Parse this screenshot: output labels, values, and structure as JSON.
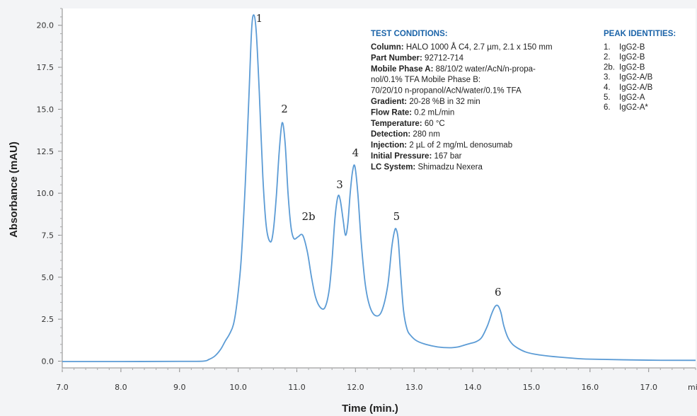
{
  "chart_data": {
    "type": "line",
    "xlabel": "Time (min.)",
    "ylabel": "Absorbance (mAU)",
    "x_unit_label": "min",
    "xlim": [
      7.0,
      17.8
    ],
    "ylim": [
      -0.4,
      21.0
    ],
    "x_ticks": [
      7.0,
      8.0,
      9.0,
      10.0,
      11.0,
      12.0,
      13.0,
      14.0,
      15.0,
      16.0,
      17.0
    ],
    "x_tick_labels": [
      "7.0",
      "8.0",
      "9.0",
      "10.0",
      "11.0",
      "12.0",
      "13.0",
      "14.0",
      "15.0",
      "16.0",
      "17.0"
    ],
    "y_ticks": [
      0.0,
      2.5,
      5.0,
      7.5,
      10.0,
      12.5,
      15.0,
      17.5,
      20.0
    ],
    "y_tick_labels": [
      "0.0",
      "2.5",
      "5.0",
      "7.5",
      "10.0",
      "12.5",
      "15.0",
      "17.5",
      "20.0"
    ],
    "grid": false,
    "line_color": "#5b9bd5",
    "series": [
      {
        "x": [
          7.0,
          8.0,
          9.0,
          9.4,
          9.5,
          9.6,
          9.7,
          9.78,
          9.85,
          9.92,
          9.98,
          10.05,
          10.12,
          10.18,
          10.23,
          10.27,
          10.31,
          10.36,
          10.42,
          10.48,
          10.55,
          10.6,
          10.65,
          10.7,
          10.75,
          10.8,
          10.85,
          10.9,
          10.95,
          11.02,
          11.1,
          11.18,
          11.25,
          11.32,
          11.4,
          11.48,
          11.55,
          11.6,
          11.65,
          11.7,
          11.74,
          11.79,
          11.83,
          11.87,
          11.91,
          11.95,
          11.99,
          12.04,
          12.1,
          12.17,
          12.25,
          12.35,
          12.45,
          12.55,
          12.62,
          12.67,
          12.7,
          12.73,
          12.77,
          12.82,
          12.88,
          12.95,
          13.05,
          13.2,
          13.4,
          13.6,
          13.75,
          13.85,
          13.95,
          14.05,
          14.15,
          14.25,
          14.32,
          14.38,
          14.43,
          14.48,
          14.53,
          14.6,
          14.68,
          14.78,
          14.9,
          15.05,
          15.3,
          15.7,
          16.0,
          17.0,
          17.8
        ],
        "y": [
          -0.02,
          -0.02,
          -0.01,
          0.0,
          0.1,
          0.3,
          0.7,
          1.2,
          1.6,
          2.2,
          3.5,
          6.0,
          10.5,
          15.5,
          19.8,
          20.6,
          19.5,
          16.0,
          11.0,
          8.0,
          7.1,
          7.8,
          9.8,
          12.5,
          14.2,
          13.0,
          10.0,
          8.0,
          7.3,
          7.4,
          7.5,
          6.5,
          5.0,
          3.8,
          3.2,
          3.2,
          4.2,
          6.0,
          8.5,
          9.8,
          9.6,
          8.4,
          7.5,
          8.2,
          10.0,
          11.3,
          11.6,
          10.0,
          7.0,
          4.5,
          3.2,
          2.7,
          3.0,
          4.5,
          6.8,
          7.8,
          7.8,
          7.2,
          5.2,
          3.0,
          1.9,
          1.5,
          1.2,
          1.0,
          0.85,
          0.8,
          0.85,
          0.95,
          1.05,
          1.15,
          1.4,
          2.1,
          2.8,
          3.25,
          3.3,
          2.9,
          2.1,
          1.4,
          1.0,
          0.75,
          0.55,
          0.42,
          0.3,
          0.18,
          0.12,
          0.06,
          0.05
        ]
      }
    ],
    "annotations": [
      {
        "text": "1",
        "x": 10.36,
        "y": 20.2
      },
      {
        "text": "2",
        "x": 10.79,
        "y": 14.8
      },
      {
        "text": "2b",
        "x": 11.2,
        "y": 8.4
      },
      {
        "text": "3",
        "x": 11.73,
        "y": 10.3
      },
      {
        "text": "4",
        "x": 12.0,
        "y": 12.2
      },
      {
        "text": "5",
        "x": 12.7,
        "y": 8.4
      },
      {
        "text": "6",
        "x": 14.43,
        "y": 3.9
      }
    ]
  },
  "test_conditions": {
    "heading": "TEST CONDITIONS:",
    "lines": [
      {
        "label": "Column:",
        "text": " HALO 1000 Å C4, 2.7 µm, 2.1 x 150 mm"
      },
      {
        "label": "Part Number:",
        "text": "  92712-714"
      },
      {
        "label": "Mobile Phase A:",
        "text": " 88/10/2 water/AcN/n-propa-"
      },
      {
        "label": "",
        "text": "nol/0.1% TFA Mobile Phase B:"
      },
      {
        "label": "",
        "text": "70/20/10 n-propanol/AcN/water/0.1% TFA"
      },
      {
        "label": "Gradient:",
        "text": " 20-28 %B in 32 min"
      },
      {
        "label": "Flow Rate:",
        "text": " 0.2 mL/min"
      },
      {
        "label": "Temperature:",
        "text": " 60 °C"
      },
      {
        "label": "Detection:",
        "text": " 280 nm"
      },
      {
        "label": "Injection:",
        "text": " 2 µL of 2 mg/mL denosumab"
      },
      {
        "label": "Initial Pressure:",
        "text": " 167 bar"
      },
      {
        "label": "LC System:",
        "text": " Shimadzu Nexera"
      }
    ]
  },
  "peak_identities": {
    "heading": "PEAK IDENTITIES:",
    "items": [
      {
        "num": "1.",
        "name": "IgG2-B"
      },
      {
        "num": "2.",
        "name": "IgG2-B"
      },
      {
        "num": "2b.",
        "name": "IgG2-B"
      },
      {
        "num": "3.",
        "name": "IgG2-A/B"
      },
      {
        "num": "4.",
        "name": "IgG2-A/B"
      },
      {
        "num": "5.",
        "name": "IgG2-A"
      },
      {
        "num": "6.",
        "name": "IgG2-A*"
      }
    ]
  }
}
